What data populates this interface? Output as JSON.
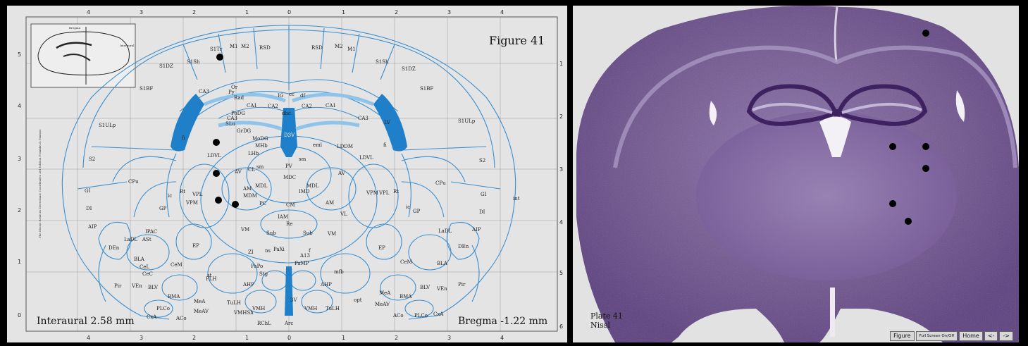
{
  "atlas": {
    "figure_label": "Figure 41",
    "interaural": "Interaural 2.58 mm",
    "bregma": "Bregma -1.22 mm",
    "side_credit": "The Mouse Brain in Stereotaxic Coordinates 3rd Edition  Franklin & Paxinos",
    "top_ticks": [
      "4",
      "3",
      "2",
      "1",
      "0",
      "1",
      "2",
      "3",
      "4"
    ],
    "left_ticks": [
      "5",
      "4",
      "3",
      "2",
      "1",
      "0"
    ],
    "right_ticks": [
      "1",
      "2",
      "3",
      "4",
      "5",
      "6"
    ],
    "inset_labels": {
      "top": "Bregma",
      "right": "Interaural"
    },
    "regions": [
      "S1Tr",
      "M1",
      "M2",
      "RSD",
      "S1Sh",
      "S1DZ",
      "S1BF",
      "S1ULp",
      "S2",
      "GI",
      "DI",
      "AIP",
      "CPu",
      "GP",
      "CA3",
      "CA1",
      "CA2",
      "Or",
      "Py",
      "Rad",
      "PoDG",
      "SLu",
      "GrDG",
      "MoDG",
      "LV",
      "D3V",
      "MHb",
      "LHb",
      "LDVL",
      "LDDM",
      "PV",
      "MDC",
      "MDL",
      "CL",
      "AV",
      "VPL",
      "VPM",
      "Rt",
      "IMD",
      "MDM",
      "AM",
      "CM",
      "IAM",
      "VL",
      "PC",
      "VM",
      "Re",
      "Sub",
      "ZI",
      "PaXi",
      "A13",
      "PaPo",
      "PaMP",
      "Stg",
      "AHP",
      "PLH",
      "VMH",
      "TuLH",
      "VMHSh",
      "RChL",
      "Arc",
      "BMA",
      "MeAV",
      "MeA",
      "ACo",
      "PLCo",
      "CxA",
      "BLA",
      "BLV",
      "CeM",
      "CeC",
      "CeL",
      "LaDL",
      "ASt",
      "IPAC",
      "DEn",
      "Pir",
      "VEn",
      "EP",
      "ic",
      "st",
      "opt",
      "mfb",
      "fi",
      "cc",
      "df",
      "IG",
      "dhc",
      "sm",
      "eml",
      "ns",
      "f",
      "int",
      "3V"
    ]
  },
  "nissl": {
    "plate_title": "Plate 41",
    "stain": "Nissl",
    "nav": {
      "figure": "Figure",
      "fullscreen": "Full Screen On/Off",
      "home": "Home",
      "prev": "<-",
      "next": "->"
    }
  }
}
